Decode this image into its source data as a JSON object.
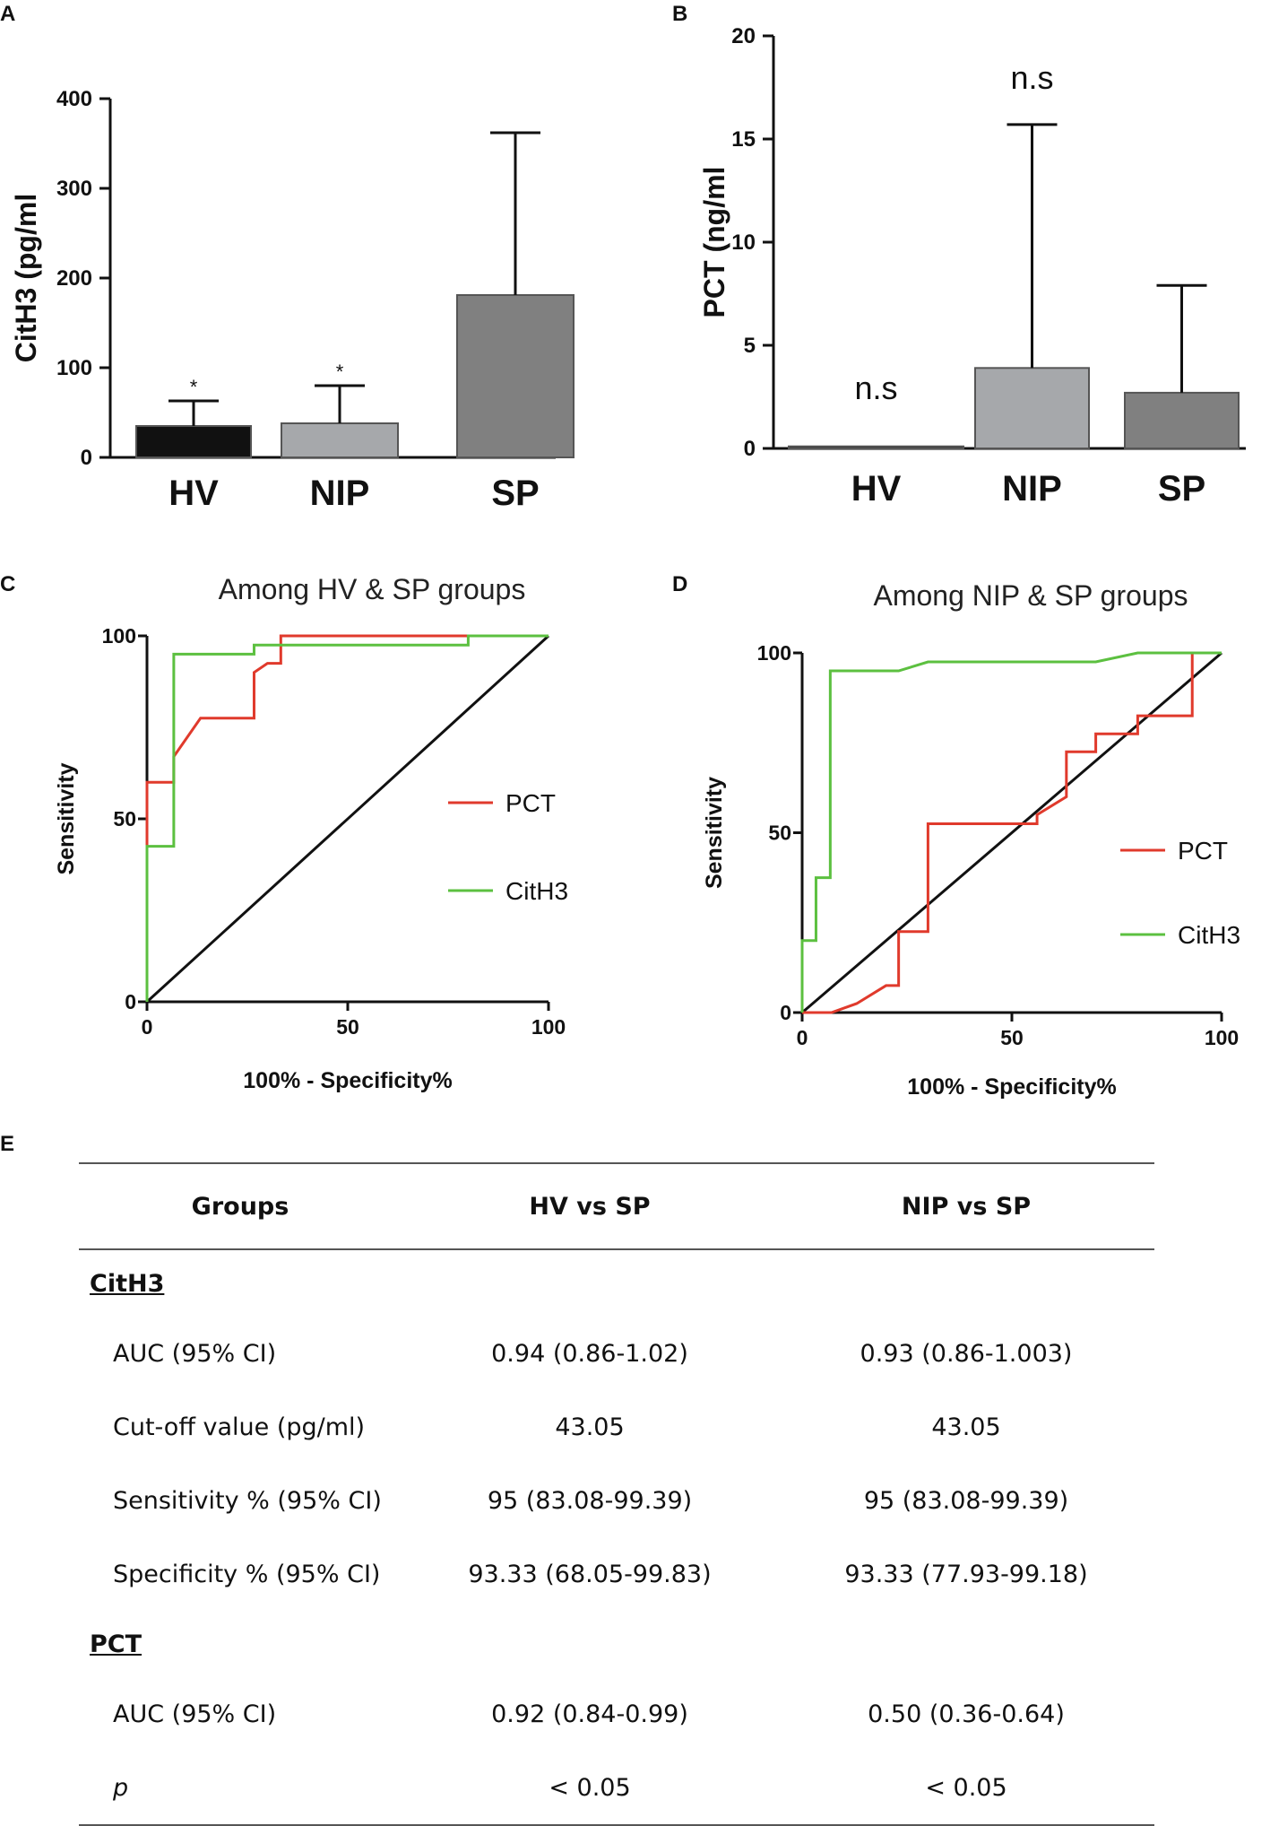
{
  "panels": {
    "a": "A",
    "b": "B",
    "c": "C",
    "d": "D",
    "e": "E"
  },
  "chart_data": [
    {
      "id": "A",
      "type": "bar",
      "categories": [
        "HV",
        "NIP",
        "SP"
      ],
      "values": [
        35,
        38,
        181
      ],
      "error_upper": [
        63,
        80,
        362
      ],
      "bar_colors": [
        "#111111",
        "#a6a8ab",
        "#808080"
      ],
      "annotations": [
        "*",
        "*",
        ""
      ],
      "ylabel": "CitH3 (pg/ml",
      "ylim": [
        0,
        400
      ],
      "yticks": [
        "0",
        "100",
        "200",
        "300",
        "400"
      ]
    },
    {
      "id": "B",
      "type": "bar",
      "categories": [
        "HV",
        "NIP",
        "SP"
      ],
      "values": [
        0.1,
        3.9,
        2.7
      ],
      "error_upper": [
        0.1,
        15.7,
        7.9
      ],
      "bar_colors": [
        "#111111",
        "#a6a8ab",
        "#808080"
      ],
      "annotations": [
        "n.s",
        "n.s",
        ""
      ],
      "ylabel": "PCT (ng/ml",
      "ylim": [
        0,
        20
      ],
      "yticks": [
        "0",
        "5",
        "10",
        "15",
        "20"
      ]
    },
    {
      "id": "C",
      "type": "line",
      "title": "Among HV & SP groups",
      "xlabel": "100% - Specificity%",
      "ylabel": "Sensitivity",
      "xlim": [
        0,
        100
      ],
      "ylim": [
        0,
        100
      ],
      "xticks": [
        "0",
        "50",
        "100"
      ],
      "yticks": [
        "0",
        "50",
        "100"
      ],
      "series": [
        {
          "name": "PCT",
          "color": "#e03a2c",
          "x": [
            0,
            0,
            6.67,
            6.67,
            13.33,
            13.33,
            26.67,
            26.67,
            30,
            30,
            33.33,
            33.33,
            100
          ],
          "y": [
            0,
            60,
            60,
            67,
            77.5,
            77.5,
            77.5,
            90,
            92.5,
            92.5,
            92.5,
            100,
            100
          ]
        },
        {
          "name": "CitH3",
          "color": "#5cc040",
          "x": [
            0,
            0,
            6.67,
            6.67,
            26.67,
            26.67,
            80,
            80,
            100
          ],
          "y": [
            0,
            42.5,
            42.5,
            95,
            95,
            97.5,
            97.5,
            100,
            100
          ]
        },
        {
          "name": "reference",
          "color": "#111111",
          "x": [
            0,
            100
          ],
          "y": [
            0,
            100
          ]
        }
      ]
    },
    {
      "id": "D",
      "type": "line",
      "title": "Among NIP & SP groups",
      "xlabel": "100% - Specificity%",
      "ylabel": "Sensitivity",
      "xlim": [
        0,
        100
      ],
      "ylim": [
        0,
        100
      ],
      "xticks": [
        "0",
        "50",
        "100"
      ],
      "yticks": [
        "0",
        "50",
        "100"
      ],
      "series": [
        {
          "name": "PCT",
          "color": "#e03a2c",
          "x": [
            0,
            7,
            13,
            20,
            23,
            23,
            30,
            30,
            56,
            56,
            63,
            63,
            70,
            70,
            77,
            77,
            80,
            80,
            93,
            93,
            100
          ],
          "y": [
            0,
            0,
            2.5,
            7.5,
            7.5,
            22.5,
            22.5,
            52.5,
            52.5,
            55,
            60,
            72.5,
            72.5,
            77.5,
            77.5,
            77.5,
            77.5,
            82.5,
            82.5,
            100,
            100
          ]
        },
        {
          "name": "CitH3",
          "color": "#5cc040",
          "x": [
            0,
            0,
            3.3,
            3.3,
            6.7,
            6.7,
            20,
            23,
            30,
            70,
            80,
            100
          ],
          "y": [
            0,
            20,
            20,
            37.5,
            37.5,
            95,
            95,
            95,
            97.5,
            97.5,
            100,
            100
          ]
        },
        {
          "name": "reference",
          "color": "#111111",
          "x": [
            0,
            100
          ],
          "y": [
            0,
            100
          ]
        }
      ]
    }
  ],
  "table": {
    "headers": [
      "Groups",
      "HV vs SP",
      "NIP vs SP"
    ],
    "section_citH3": "CitH3",
    "section_pct": "PCT",
    "rows_citH3": [
      [
        "AUC (95% CI)",
        "0.94 (0.86-1.02)",
        "0.93 (0.86-1.003)"
      ],
      [
        "Cut-off value (pg/ml)",
        "43.05",
        "43.05"
      ],
      [
        "Sensitivity % (95% CI)",
        "95 (83.08-99.39)",
        "95 (83.08-99.39)"
      ],
      [
        "Specificity % (95% CI)",
        "93.33 (68.05-99.83)",
        "93.33 (77.93-99.18)"
      ]
    ],
    "rows_pct": [
      [
        "AUC (95% CI)",
        "0.92 (0.84-0.99)",
        "0.50 (0.36-0.64)"
      ],
      [
        "p",
        "< 0.05",
        "< 0.05"
      ]
    ]
  }
}
